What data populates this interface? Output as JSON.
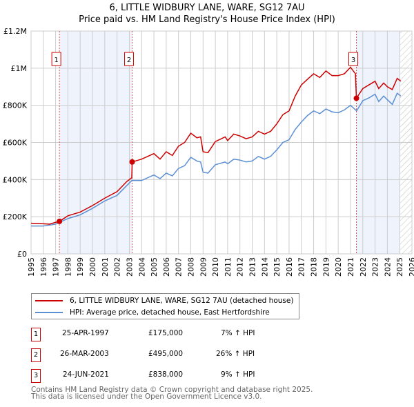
{
  "chart_data": {
    "type": "line",
    "title": "6, LITTLE WIDBURY LANE, WARE, SG12 7AU",
    "subtitle": "Price paid vs. HM Land Registry's House Price Index (HPI)",
    "xlim": [
      1995,
      2026
    ],
    "ylim": [
      0,
      1200000
    ],
    "x_ticks": [
      "1995",
      "1996",
      "1997",
      "1998",
      "1999",
      "2000",
      "2001",
      "2002",
      "2003",
      "2004",
      "2005",
      "2006",
      "2007",
      "2008",
      "2009",
      "2010",
      "2011",
      "2012",
      "2013",
      "2014",
      "2015",
      "2016",
      "2017",
      "2018",
      "2019",
      "2020",
      "2021",
      "2022",
      "2023",
      "2024",
      "2025",
      "2026"
    ],
    "y_ticks": [
      {
        "v": 0,
        "label": "£0"
      },
      {
        "v": 200000,
        "label": "£200K"
      },
      {
        "v": 400000,
        "label": "£400K"
      },
      {
        "v": 600000,
        "label": "£600K"
      },
      {
        "v": 800000,
        "label": "£800K"
      },
      {
        "v": 1000000,
        "label": "£1M"
      },
      {
        "v": 1200000,
        "label": "£1.2M"
      }
    ],
    "grid": true,
    "shaded_ranges": [
      [
        1997.31,
        2003.23
      ],
      [
        2021.48,
        2025.05
      ]
    ],
    "future_hatch": [
      2025.05,
      2026
    ],
    "series": [
      {
        "name": "6, LITTLE WIDBURY LANE, WARE, SG12 7AU (detached house)",
        "color": "#cc0000",
        "x": [
          1995,
          1996,
          1996.5,
          1997,
          1997.31,
          1998,
          1999,
          2000,
          2001,
          2002,
          2002.8,
          2003.2,
          2003.23,
          2004,
          2005,
          2005.5,
          2006,
          2006.5,
          2007,
          2007.5,
          2008,
          2008.5,
          2008.8,
          2009,
          2009.4,
          2010,
          2010.8,
          2011,
          2011.5,
          2012,
          2012.5,
          2013,
          2013.5,
          2014,
          2014.5,
          2015,
          2015.5,
          2016,
          2016.5,
          2017,
          2017.5,
          2018,
          2018.5,
          2019,
          2019.5,
          2020,
          2020.5,
          2021,
          2021.4,
          2021.48,
          2022,
          2022.5,
          2023,
          2023.3,
          2023.7,
          2024,
          2024.4,
          2024.8,
          2025.1
        ],
        "y": [
          165000,
          162000,
          160000,
          170000,
          175000,
          205000,
          225000,
          260000,
          300000,
          335000,
          390000,
          410000,
          495000,
          510000,
          540000,
          510000,
          550000,
          530000,
          580000,
          600000,
          650000,
          625000,
          630000,
          550000,
          545000,
          605000,
          630000,
          610000,
          645000,
          635000,
          620000,
          630000,
          660000,
          645000,
          660000,
          700000,
          750000,
          770000,
          850000,
          910000,
          940000,
          970000,
          950000,
          985000,
          960000,
          960000,
          970000,
          1005000,
          970000,
          838000,
          890000,
          910000,
          930000,
          890000,
          920000,
          900000,
          885000,
          945000,
          930000
        ]
      },
      {
        "name": "HPI: Average price, detached house, East Hertfordshire",
        "color": "#5b8fd4",
        "x": [
          1995,
          1996,
          1997,
          1998,
          1999,
          2000,
          2001,
          2002,
          2003.2,
          2004,
          2005,
          2005.5,
          2006,
          2006.5,
          2007,
          2007.5,
          2008,
          2008.5,
          2008.8,
          2009,
          2009.4,
          2010,
          2010.8,
          2011,
          2011.5,
          2012,
          2012.5,
          2013,
          2013.5,
          2014,
          2014.5,
          2015,
          2015.5,
          2016,
          2016.5,
          2017,
          2017.5,
          2018,
          2018.5,
          2019,
          2019.5,
          2020,
          2020.5,
          2021,
          2021.5,
          2022,
          2022.5,
          2023,
          2023.3,
          2023.7,
          2024,
          2024.4,
          2024.8,
          2025.1
        ],
        "y": [
          150000,
          150000,
          160000,
          190000,
          210000,
          245000,
          285000,
          315000,
          395000,
          395000,
          425000,
          405000,
          435000,
          420000,
          460000,
          475000,
          520000,
          500000,
          495000,
          440000,
          435000,
          480000,
          495000,
          485000,
          510000,
          505000,
          495000,
          500000,
          525000,
          510000,
          525000,
          560000,
          600000,
          615000,
          670000,
          710000,
          745000,
          770000,
          755000,
          780000,
          765000,
          760000,
          775000,
          800000,
          770000,
          825000,
          840000,
          860000,
          820000,
          850000,
          830000,
          805000,
          865000,
          850000
        ]
      }
    ],
    "sales": [
      {
        "num": "1",
        "x": 1997.31,
        "price": 175000,
        "date": "25-APR-1997",
        "price_label": "£175,000",
        "hpi": "7% ↑ HPI"
      },
      {
        "num": "2",
        "x": 2003.23,
        "price": 495000,
        "date": "26-MAR-2003",
        "price_label": "£495,000",
        "hpi": "26% ↑ HPI"
      },
      {
        "num": "3",
        "x": 2021.48,
        "price": 838000,
        "date": "24-JUN-2021",
        "price_label": "£838,000",
        "hpi": "9% ↑ HPI"
      }
    ]
  },
  "footer": {
    "line1": "Contains HM Land Registry data © Crown copyright and database right 2025.",
    "line2": "This data is licensed under the Open Government Licence v3.0."
  }
}
